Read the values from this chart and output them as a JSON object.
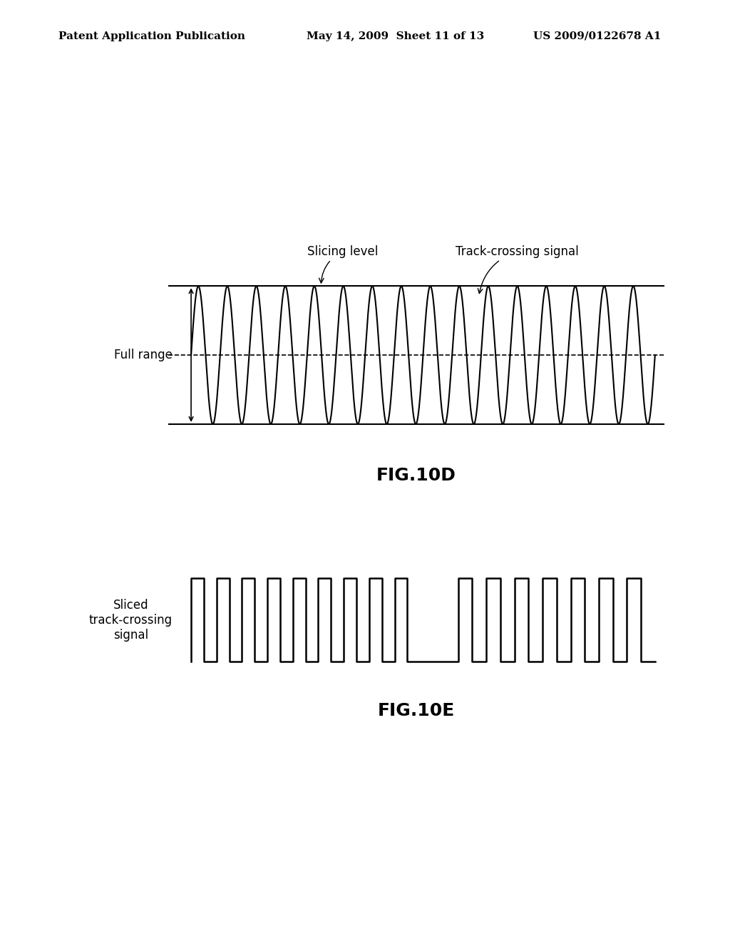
{
  "header_left": "Patent Application Publication",
  "header_mid": "May 14, 2009  Sheet 11 of 13",
  "header_right": "US 2009/0122678 A1",
  "fig10d_label": "FIG.10D",
  "fig10e_label": "FIG.10E",
  "slicing_level_label": "Slicing level",
  "track_crossing_label": "Track-crossing signal",
  "full_range_label": "Full range",
  "sliced_label": "Sliced\ntrack-crossing\nsignal",
  "bg_color": "#ffffff",
  "line_color": "#000000",
  "fig_fontsize": 18,
  "header_fontsize": 11,
  "label_fontsize": 12
}
